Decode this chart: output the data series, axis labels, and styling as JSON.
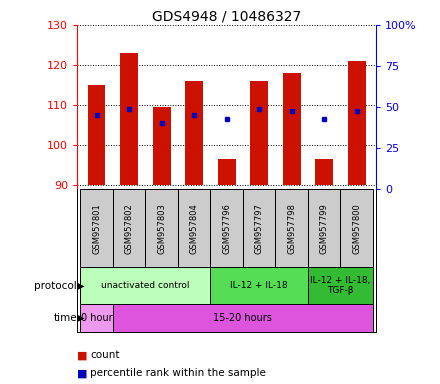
{
  "title": "GDS4948 / 10486327",
  "samples": [
    "GSM957801",
    "GSM957802",
    "GSM957803",
    "GSM957804",
    "GSM957796",
    "GSM957797",
    "GSM957798",
    "GSM957799",
    "GSM957800"
  ],
  "bar_bottoms": [
    90,
    90,
    90,
    90,
    90,
    90,
    90,
    90,
    90
  ],
  "bar_tops": [
    115,
    123,
    109.5,
    116,
    96.5,
    116,
    118,
    96.5,
    121
  ],
  "blue_dots_y": [
    107.5,
    109,
    105.5,
    107.5,
    106.5,
    109,
    108.5,
    106.5,
    108.5
  ],
  "ylim_left": [
    89,
    130
  ],
  "ylim_right": [
    0,
    100
  ],
  "yticks_left": [
    90,
    100,
    110,
    120,
    130
  ],
  "yticks_right": [
    0,
    25,
    50,
    75,
    100
  ],
  "ytick_labels_right": [
    "0",
    "25",
    "50",
    "75",
    "100%"
  ],
  "bar_color": "#cc1100",
  "dot_color": "#0000bb",
  "grid_color": "#000000",
  "protocol_groups": [
    {
      "label": "unactivated control",
      "start": 0,
      "end": 4,
      "color": "#bbffbb"
    },
    {
      "label": "IL-12 + IL-18",
      "start": 4,
      "end": 7,
      "color": "#55dd55"
    },
    {
      "label": "IL-12 + IL-18,\nTGF-β",
      "start": 7,
      "end": 9,
      "color": "#33bb33"
    }
  ],
  "time_groups": [
    {
      "label": "0 hour",
      "start": 0,
      "end": 1,
      "color": "#ee99ee"
    },
    {
      "label": "15-20 hours",
      "start": 1,
      "end": 9,
      "color": "#dd55dd"
    }
  ],
  "legend_count_label": "count",
  "legend_pct_label": "percentile rank within the sample",
  "protocol_label": "protocol",
  "time_label": "time",
  "sample_area_color": "#cccccc"
}
